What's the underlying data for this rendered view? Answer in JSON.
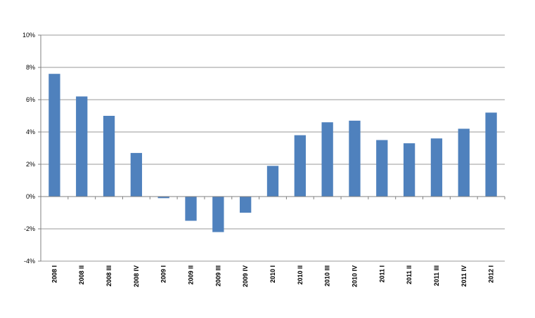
{
  "chart_data": {
    "type": "bar",
    "title": "",
    "xlabel": "",
    "ylabel": "",
    "categories": [
      "2008 I",
      "2008 II",
      "2008 III",
      "2008 IV",
      "2009 I",
      "2009 II",
      "2009 III",
      "2009 IV",
      "2010 I",
      "2010 II",
      "2010 III",
      "2010 IV",
      "2011 I",
      "2011 II",
      "2011 III",
      "2011 IV",
      "2012 I"
    ],
    "values": [
      7.6,
      6.2,
      5.0,
      2.7,
      -0.1,
      -1.5,
      -2.2,
      -1.0,
      1.9,
      3.8,
      4.6,
      4.7,
      3.5,
      3.3,
      3.6,
      4.2,
      5.2
    ],
    "ylim": [
      -4,
      10
    ],
    "yticks": [
      -4,
      -2,
      0,
      2,
      4,
      6,
      8,
      10
    ],
    "ytick_labels": [
      "-4%",
      "-2%",
      "0%",
      "2%",
      "4%",
      "6%",
      "8%",
      "10%"
    ],
    "grid": true,
    "bar_color": "#4f81bd",
    "grid_color": "#9a9a9a",
    "axis_color": "#808080"
  }
}
